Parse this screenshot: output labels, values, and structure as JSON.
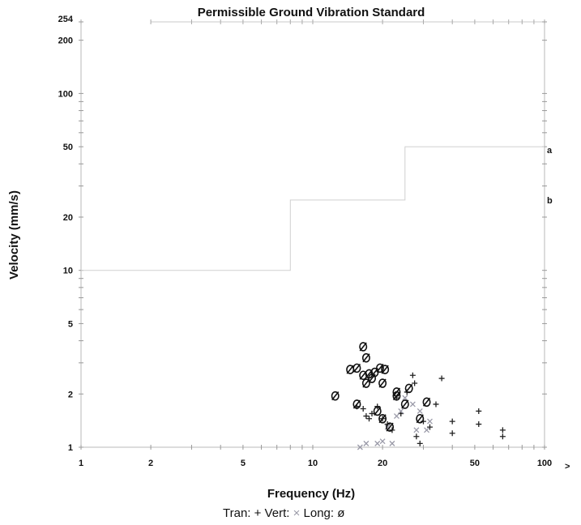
{
  "chart_data": {
    "type": "scatter",
    "title": "Permissible Ground Vibration Standard",
    "xlabel": "Frequency (Hz)",
    "ylabel": "Velocity (mm/s)",
    "x_scale": "log",
    "y_scale": "log",
    "xlim": [
      1,
      100
    ],
    "ylim": [
      1,
      254
    ],
    "x_ticks": [
      {
        "value": 1,
        "label": "1"
      },
      {
        "value": 2,
        "label": "2"
      },
      {
        "value": 5,
        "label": "5"
      },
      {
        "value": 10,
        "label": "10"
      },
      {
        "value": 20,
        "label": "20"
      },
      {
        "value": 50,
        "label": "50"
      },
      {
        "value": 100,
        "label": "100"
      }
    ],
    "x_overflow_marker": ">",
    "y_ticks": [
      {
        "value": 1,
        "label": "1"
      },
      {
        "value": 2,
        "label": "2"
      },
      {
        "value": 5,
        "label": "5"
      },
      {
        "value": 10,
        "label": "10"
      },
      {
        "value": 20,
        "label": "20"
      },
      {
        "value": 50,
        "label": "50"
      },
      {
        "value": 100,
        "label": "100"
      },
      {
        "value": 200,
        "label": "200"
      },
      {
        "value": 254,
        "label": "254"
      }
    ],
    "grid": false,
    "standard_curve": {
      "points": [
        [
          1,
          10
        ],
        [
          8,
          10
        ],
        [
          8,
          25
        ],
        [
          25,
          25
        ],
        [
          25,
          50
        ],
        [
          100,
          50
        ]
      ],
      "color": "#d0d0d0"
    },
    "reference_labels": [
      {
        "text": "a",
        "y": 48
      },
      {
        "text": "b",
        "y": 25
      }
    ],
    "legend": {
      "placement": "bottom",
      "items": [
        {
          "label": "Tran:",
          "symbol": "+"
        },
        {
          "label": "Vert:",
          "symbol": "×"
        },
        {
          "label": "Long:",
          "symbol": "ø"
        }
      ]
    },
    "series": [
      {
        "name": "Tran",
        "symbol": "+",
        "color": "#222222",
        "points": [
          [
            15.5,
            1.7
          ],
          [
            16.5,
            1.65
          ],
          [
            17,
            1.5
          ],
          [
            17.5,
            1.45
          ],
          [
            18,
            1.55
          ],
          [
            19,
            1.7
          ],
          [
            20,
            1.45
          ],
          [
            21,
            1.35
          ],
          [
            22,
            1.25
          ],
          [
            23,
            1.9
          ],
          [
            24,
            1.55
          ],
          [
            25.5,
            2.05
          ],
          [
            27,
            2.55
          ],
          [
            27.5,
            2.3
          ],
          [
            28,
            1.15
          ],
          [
            29,
            1.05
          ],
          [
            30,
            1.4
          ],
          [
            32,
            1.3
          ],
          [
            34,
            1.75
          ],
          [
            36,
            2.45
          ],
          [
            40,
            1.4
          ],
          [
            40,
            1.2
          ],
          [
            52,
            1.6
          ],
          [
            52,
            1.35
          ],
          [
            66,
            1.25
          ],
          [
            66,
            1.15
          ]
        ]
      },
      {
        "name": "Vert",
        "symbol": "×",
        "color": "#9a9aa8",
        "points": [
          [
            16,
            1.0
          ],
          [
            17,
            1.05
          ],
          [
            19,
            1.05
          ],
          [
            20,
            1.08
          ],
          [
            22,
            1.05
          ],
          [
            21,
            1.3
          ],
          [
            24,
            1.6
          ],
          [
            25,
            1.9
          ],
          [
            27,
            1.75
          ],
          [
            29,
            1.6
          ],
          [
            32,
            1.4
          ],
          [
            31,
            1.25
          ],
          [
            28,
            1.25
          ],
          [
            23,
            1.5
          ]
        ]
      },
      {
        "name": "Long",
        "symbol": "ø",
        "color": "#111111",
        "points": [
          [
            16.5,
            3.7
          ],
          [
            17,
            3.2
          ],
          [
            14.5,
            2.75
          ],
          [
            15.5,
            2.8
          ],
          [
            16.5,
            2.55
          ],
          [
            17.5,
            2.6
          ],
          [
            18,
            2.45
          ],
          [
            18.5,
            2.65
          ],
          [
            19.5,
            2.8
          ],
          [
            20.5,
            2.75
          ],
          [
            17,
            2.3
          ],
          [
            20,
            2.3
          ],
          [
            12.5,
            1.95
          ],
          [
            15.5,
            1.75
          ],
          [
            19,
            1.6
          ],
          [
            20,
            1.45
          ],
          [
            21.5,
            1.3
          ],
          [
            23,
            2.05
          ],
          [
            23,
            1.95
          ],
          [
            25,
            1.75
          ],
          [
            26,
            2.15
          ],
          [
            29,
            1.45
          ],
          [
            31,
            1.8
          ]
        ]
      }
    ]
  }
}
